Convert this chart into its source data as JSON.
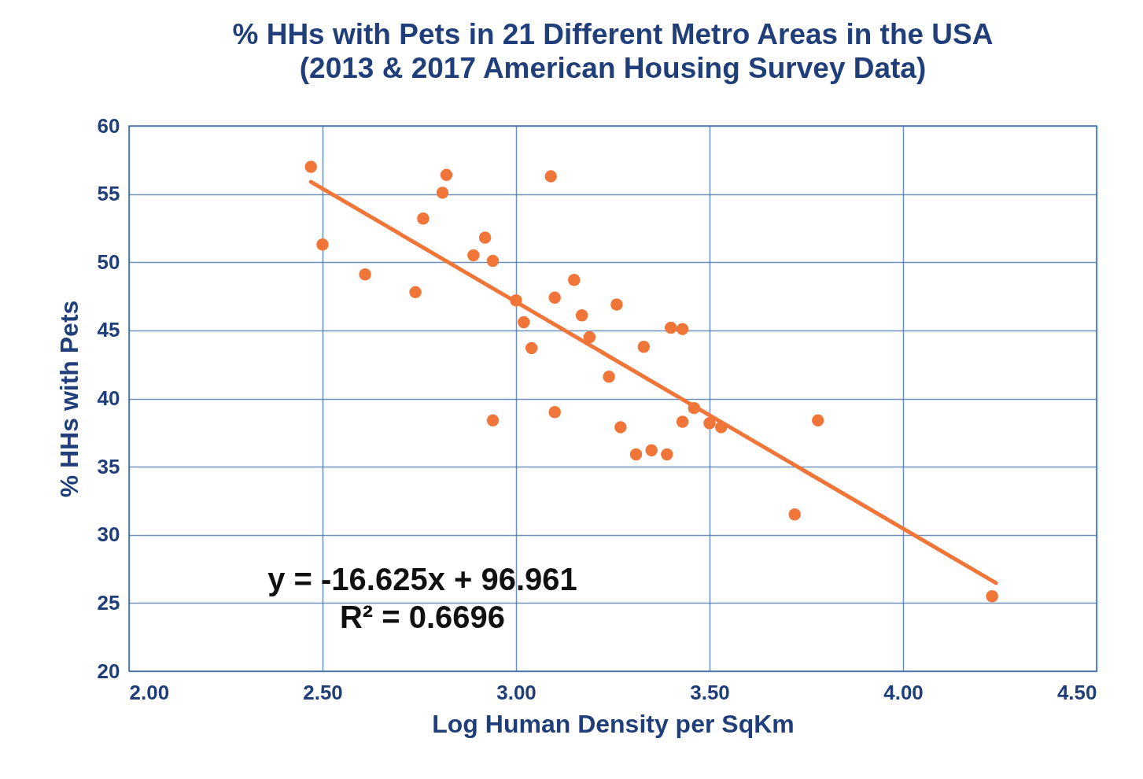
{
  "chart_data": {
    "type": "scatter",
    "title": "% HHs with Pets in 21 Different Metro Areas in the USA",
    "subtitle": "(2013 & 2017 American Housing Survey Data)",
    "xlabel": "Log Human Density per SqKm",
    "ylabel": "% HHs with Pets",
    "xlim": [
      2,
      4.5
    ],
    "xticks": [
      {
        "value": 2,
        "label": "2.00"
      },
      {
        "value": 2.5,
        "label": "2.50"
      },
      {
        "value": 3,
        "label": "3.00"
      },
      {
        "value": 3.5,
        "label": "3.50"
      },
      {
        "value": 4,
        "label": "4.00"
      },
      {
        "value": 4.5,
        "label": "4.50"
      }
    ],
    "ylim": [
      20,
      60
    ],
    "yticks": [
      20,
      25,
      30,
      35,
      40,
      45,
      50,
      55,
      60
    ],
    "grid": true,
    "series": [
      {
        "color": "#f07539",
        "marker": "circle",
        "x": [
          2.47,
          2.5,
          2.61,
          2.74,
          2.76,
          2.81,
          2.82,
          2.89,
          2.92,
          2.94,
          2.94,
          3.0,
          3.02,
          3.04,
          3.09,
          3.1,
          3.1,
          3.15,
          3.17,
          3.19,
          3.24,
          3.26,
          3.27,
          3.31,
          3.33,
          3.35,
          3.39,
          3.4,
          3.43,
          3.43,
          3.46,
          3.5,
          3.53,
          3.72,
          3.78,
          4.23
        ],
        "values": [
          57.0,
          51.3,
          49.1,
          47.8,
          53.2,
          55.1,
          56.4,
          50.5,
          51.8,
          50.1,
          38.4,
          47.2,
          45.6,
          43.7,
          56.3,
          47.4,
          39.0,
          48.7,
          46.1,
          44.5,
          41.6,
          46.9,
          37.9,
          35.9,
          43.8,
          36.2,
          35.9,
          45.2,
          45.1,
          38.3,
          39.3,
          38.2,
          37.9,
          31.5,
          38.4,
          25.5
        ]
      },
      {
        "type": "line",
        "marker": "none",
        "color": "#f07539",
        "x": [
          2.47,
          4.24
        ],
        "values": [
          55.9,
          26.47
        ]
      }
    ],
    "annotations": [
      "y = -16.625x + 96.961",
      "R² = 0.6696"
    ]
  }
}
